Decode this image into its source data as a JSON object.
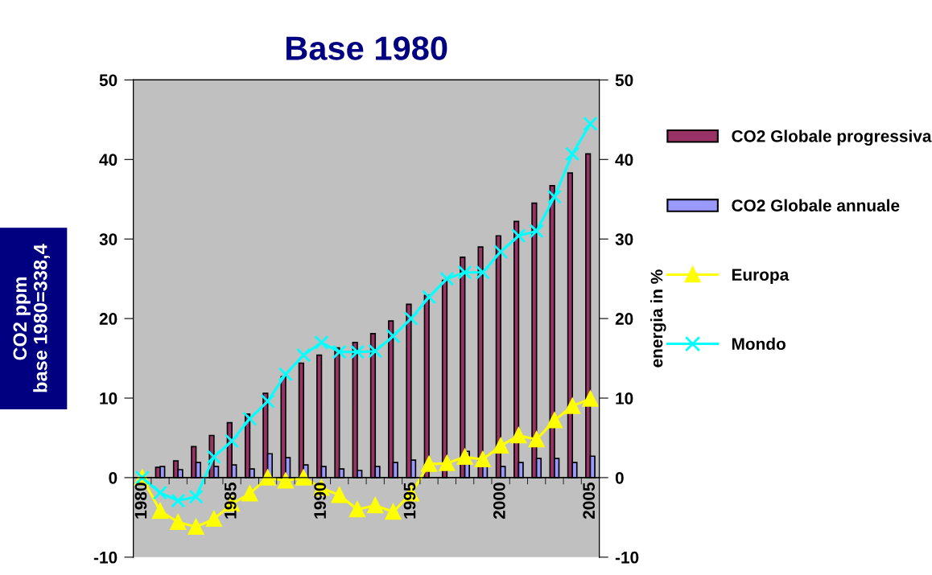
{
  "chart_data": {
    "type": "bar",
    "title": "Base 1980",
    "ylabel": "CO2 ppm\nbase 1980=338,4",
    "y2label": "energia in %",
    "categories": [
      "1980",
      null,
      null,
      null,
      null,
      "1985",
      null,
      null,
      null,
      null,
      "1990",
      null,
      null,
      null,
      null,
      "1995",
      null,
      null,
      null,
      null,
      "2000",
      null,
      null,
      null,
      null,
      "2005"
    ],
    "series": [
      {
        "name": "CO2 Globale progressiva",
        "color": "#993366",
        "values": [
          null,
          1.3,
          2.1,
          3.9,
          5.3,
          6.9,
          8.0,
          10.6,
          12.7,
          14.4,
          15.4,
          16.3,
          17.0,
          18.1,
          19.7,
          21.8,
          22.9,
          24.8,
          27.7,
          29.0,
          30.4,
          32.2,
          34.5,
          36.7,
          38.3,
          40.7
        ]
      },
      {
        "name": "CO2 Globale annuale",
        "color": "#9999ff",
        "values": [
          null,
          1.4,
          1.0,
          1.9,
          1.4,
          1.6,
          1.1,
          3.0,
          2.5,
          1.6,
          1.4,
          1.1,
          0.9,
          1.4,
          1.9,
          2.2,
          null,
          null,
          3.3,
          1.4,
          1.4,
          1.9,
          2.4,
          2.4,
          1.9,
          2.7
        ]
      },
      {
        "name": "Europa",
        "type": "line",
        "axis": "y2",
        "color": "#ffff00",
        "marker": "triangle",
        "values": [
          0,
          -4.2,
          -5.6,
          -6.2,
          -5.2,
          -3.3,
          -2.0,
          0.0,
          -0.4,
          0.0,
          -1.3,
          -2.2,
          -4.0,
          -3.5,
          -4.3,
          -2.0,
          1.7,
          1.8,
          2.6,
          2.3,
          4.0,
          5.3,
          4.8,
          7.2,
          9.0,
          9.9
        ]
      },
      {
        "name": "Mondo",
        "type": "line",
        "axis": "y2",
        "color": "#00ffff",
        "marker": "cross",
        "values": [
          0,
          -1.9,
          -2.9,
          -2.4,
          2.6,
          4.6,
          7.4,
          9.6,
          13.0,
          15.4,
          17.0,
          15.8,
          15.8,
          15.9,
          17.8,
          20.0,
          22.7,
          25.0,
          25.8,
          25.8,
          28.4,
          30.4,
          31.0,
          35.3,
          40.7,
          44.5
        ]
      }
    ],
    "ylim": [
      -10,
      50
    ],
    "yticks": [
      -10,
      0,
      10,
      20,
      30,
      40,
      50
    ],
    "y2lim": [
      -10,
      50
    ],
    "y2ticks": [
      -10,
      0,
      10,
      20,
      30,
      40,
      50
    ],
    "grid": false,
    "legend": "right",
    "line_style": "solid"
  }
}
